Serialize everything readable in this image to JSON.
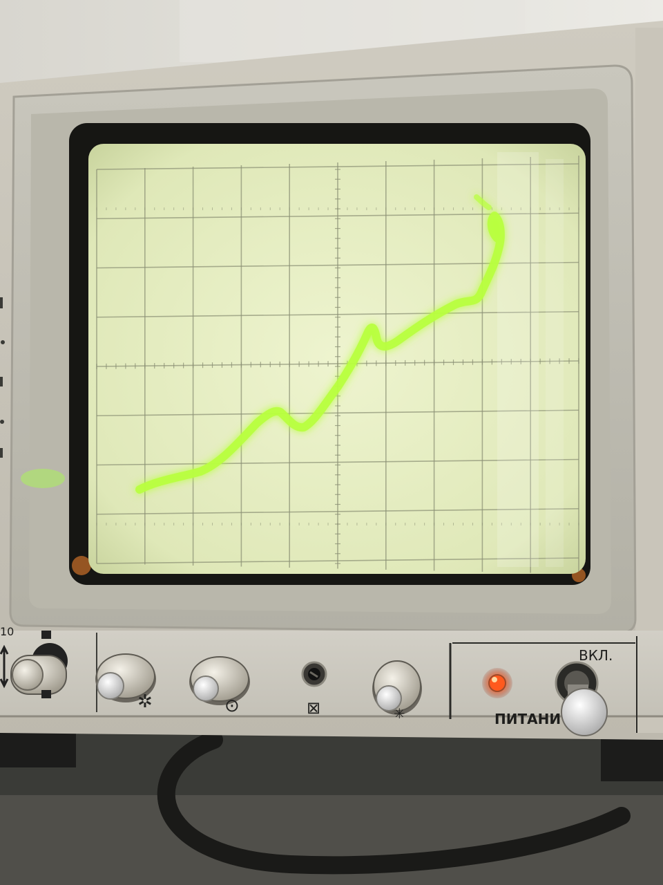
{
  "device": {
    "panel_labels": {
      "power_on": "ВКЛ.",
      "power": "ПИТАНИ"
    },
    "knob_symbols": {
      "brightness": "✲",
      "focus": "⊙",
      "astigmatism": "⊠",
      "illumination": "✳"
    },
    "switch_labels": {
      "range": "10"
    },
    "indicator_color": "#ff5a1e",
    "trace_color": "#b9ff3e",
    "screen_color": "#e8f0c6"
  }
}
